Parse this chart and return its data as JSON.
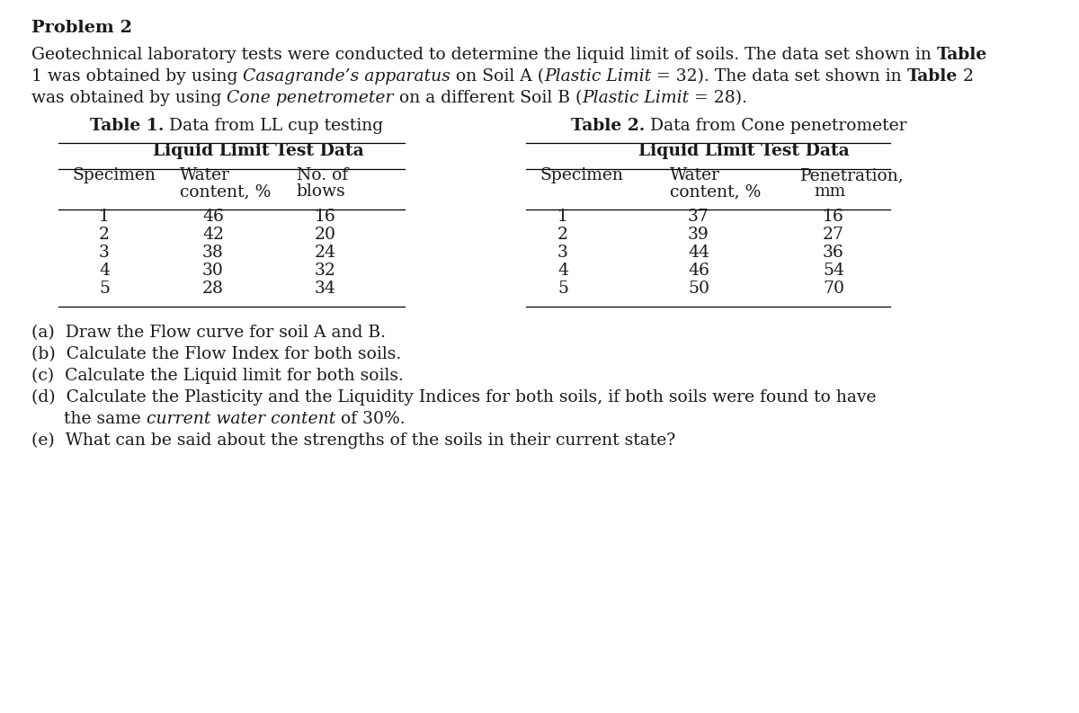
{
  "title": "Problem 2",
  "background_color": "#ffffff",
  "text_color": "#1a1a1a",
  "font_size": 13.5,
  "table1_data": [
    [
      "1",
      "46",
      "16"
    ],
    [
      "2",
      "42",
      "20"
    ],
    [
      "3",
      "38",
      "24"
    ],
    [
      "4",
      "30",
      "32"
    ],
    [
      "5",
      "28",
      "34"
    ]
  ],
  "table2_data": [
    [
      "1",
      "37",
      "16"
    ],
    [
      "2",
      "39",
      "27"
    ],
    [
      "3",
      "44",
      "36"
    ],
    [
      "4",
      "46",
      "54"
    ],
    [
      "5",
      "50",
      "70"
    ]
  ]
}
